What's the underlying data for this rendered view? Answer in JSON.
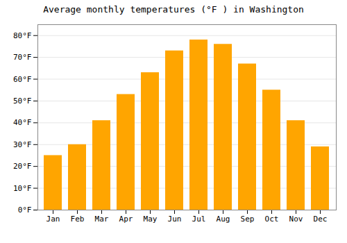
{
  "chart_data": {
    "type": "bar",
    "title": "Average monthly temperatures (°F ) in Washington",
    "categories": [
      "Jan",
      "Feb",
      "Mar",
      "Apr",
      "May",
      "Jun",
      "Jul",
      "Aug",
      "Sep",
      "Oct",
      "Nov",
      "Dec"
    ],
    "values": [
      25,
      30,
      41,
      53,
      63,
      73,
      78,
      76,
      67,
      55,
      41,
      29
    ],
    "color": "#FFA500",
    "ylim": [
      0,
      85
    ],
    "yticks": [
      {
        "value": 0,
        "label": "0°F"
      },
      {
        "value": 10,
        "label": "10°F"
      },
      {
        "value": 20,
        "label": "20°F"
      },
      {
        "value": 30,
        "label": "30°F"
      },
      {
        "value": 40,
        "label": "40°F"
      },
      {
        "value": 50,
        "label": "50°F"
      },
      {
        "value": 60,
        "label": "60°F"
      },
      {
        "value": 70,
        "label": "70°F"
      },
      {
        "value": 80,
        "label": "80°F"
      }
    ],
    "grid": true
  }
}
